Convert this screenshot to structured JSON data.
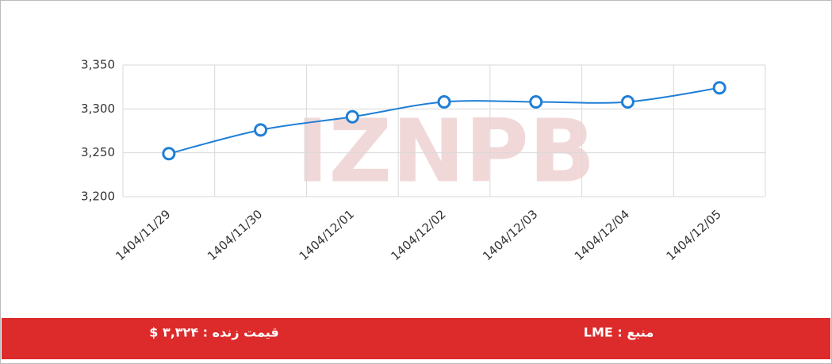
{
  "chart_data": {
    "type": "line",
    "categories": [
      "1404/11/29",
      "1404/11/30",
      "1404/12/01",
      "1404/12/02",
      "1404/12/03",
      "1404/12/04",
      "1404/12/05"
    ],
    "series": [
      {
        "name": "LME",
        "color": "#1f7fd6",
        "values": [
          3249,
          3276,
          3291,
          3308,
          3308,
          3308,
          3324
        ]
      }
    ],
    "ylim": [
      3200,
      3350
    ],
    "yticks": [
      {
        "value": 3200,
        "label": "3,200"
      },
      {
        "value": 3250,
        "label": "3,250"
      },
      {
        "value": 3300,
        "label": "3,300"
      },
      {
        "value": 3350,
        "label": "3,350"
      }
    ],
    "grid": true,
    "watermark": "IZNPB"
  },
  "footer": {
    "live_price": "قیمت زنده : ۳,۳۲۴ $",
    "source": "منبع : LME"
  }
}
